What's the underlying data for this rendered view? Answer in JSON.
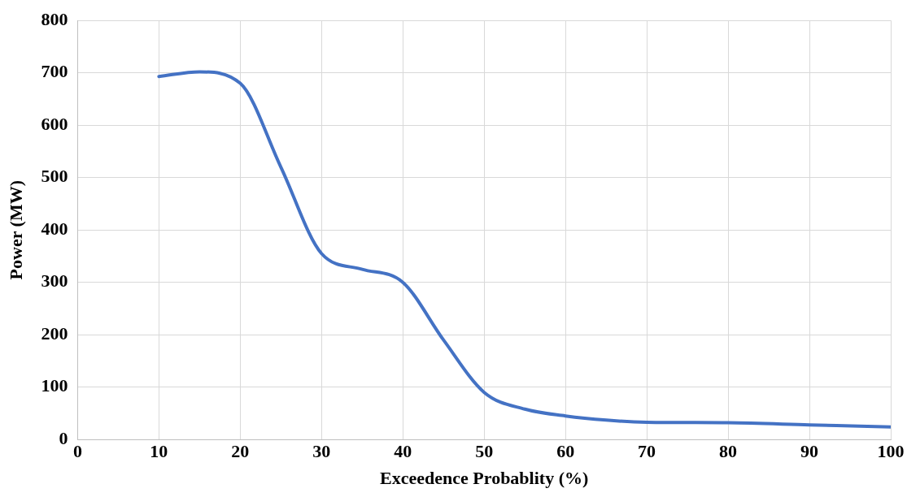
{
  "chart_data": {
    "type": "line",
    "xlabel": "Exceedence Probablity (%)",
    "ylabel": "Power (MW)",
    "x": [
      10,
      15,
      20,
      25,
      30,
      35,
      40,
      45,
      50,
      55,
      60,
      65,
      70,
      80,
      90,
      100
    ],
    "series": [
      {
        "color": "#4472c4",
        "values": [
          693,
          702,
          680,
          520,
          355,
          325,
          300,
          190,
          90,
          58,
          45,
          37,
          33,
          32,
          28,
          24
        ]
      }
    ],
    "xlim": [
      0,
      100
    ],
    "xticks": [
      0,
      10,
      20,
      30,
      40,
      50,
      60,
      70,
      80,
      90,
      100
    ],
    "ylim": [
      0,
      800
    ],
    "yticks": [
      0,
      100,
      200,
      300,
      400,
      500,
      600,
      700,
      800
    ],
    "grid": true,
    "legend": false,
    "marker": "none",
    "line_style": "solid"
  }
}
